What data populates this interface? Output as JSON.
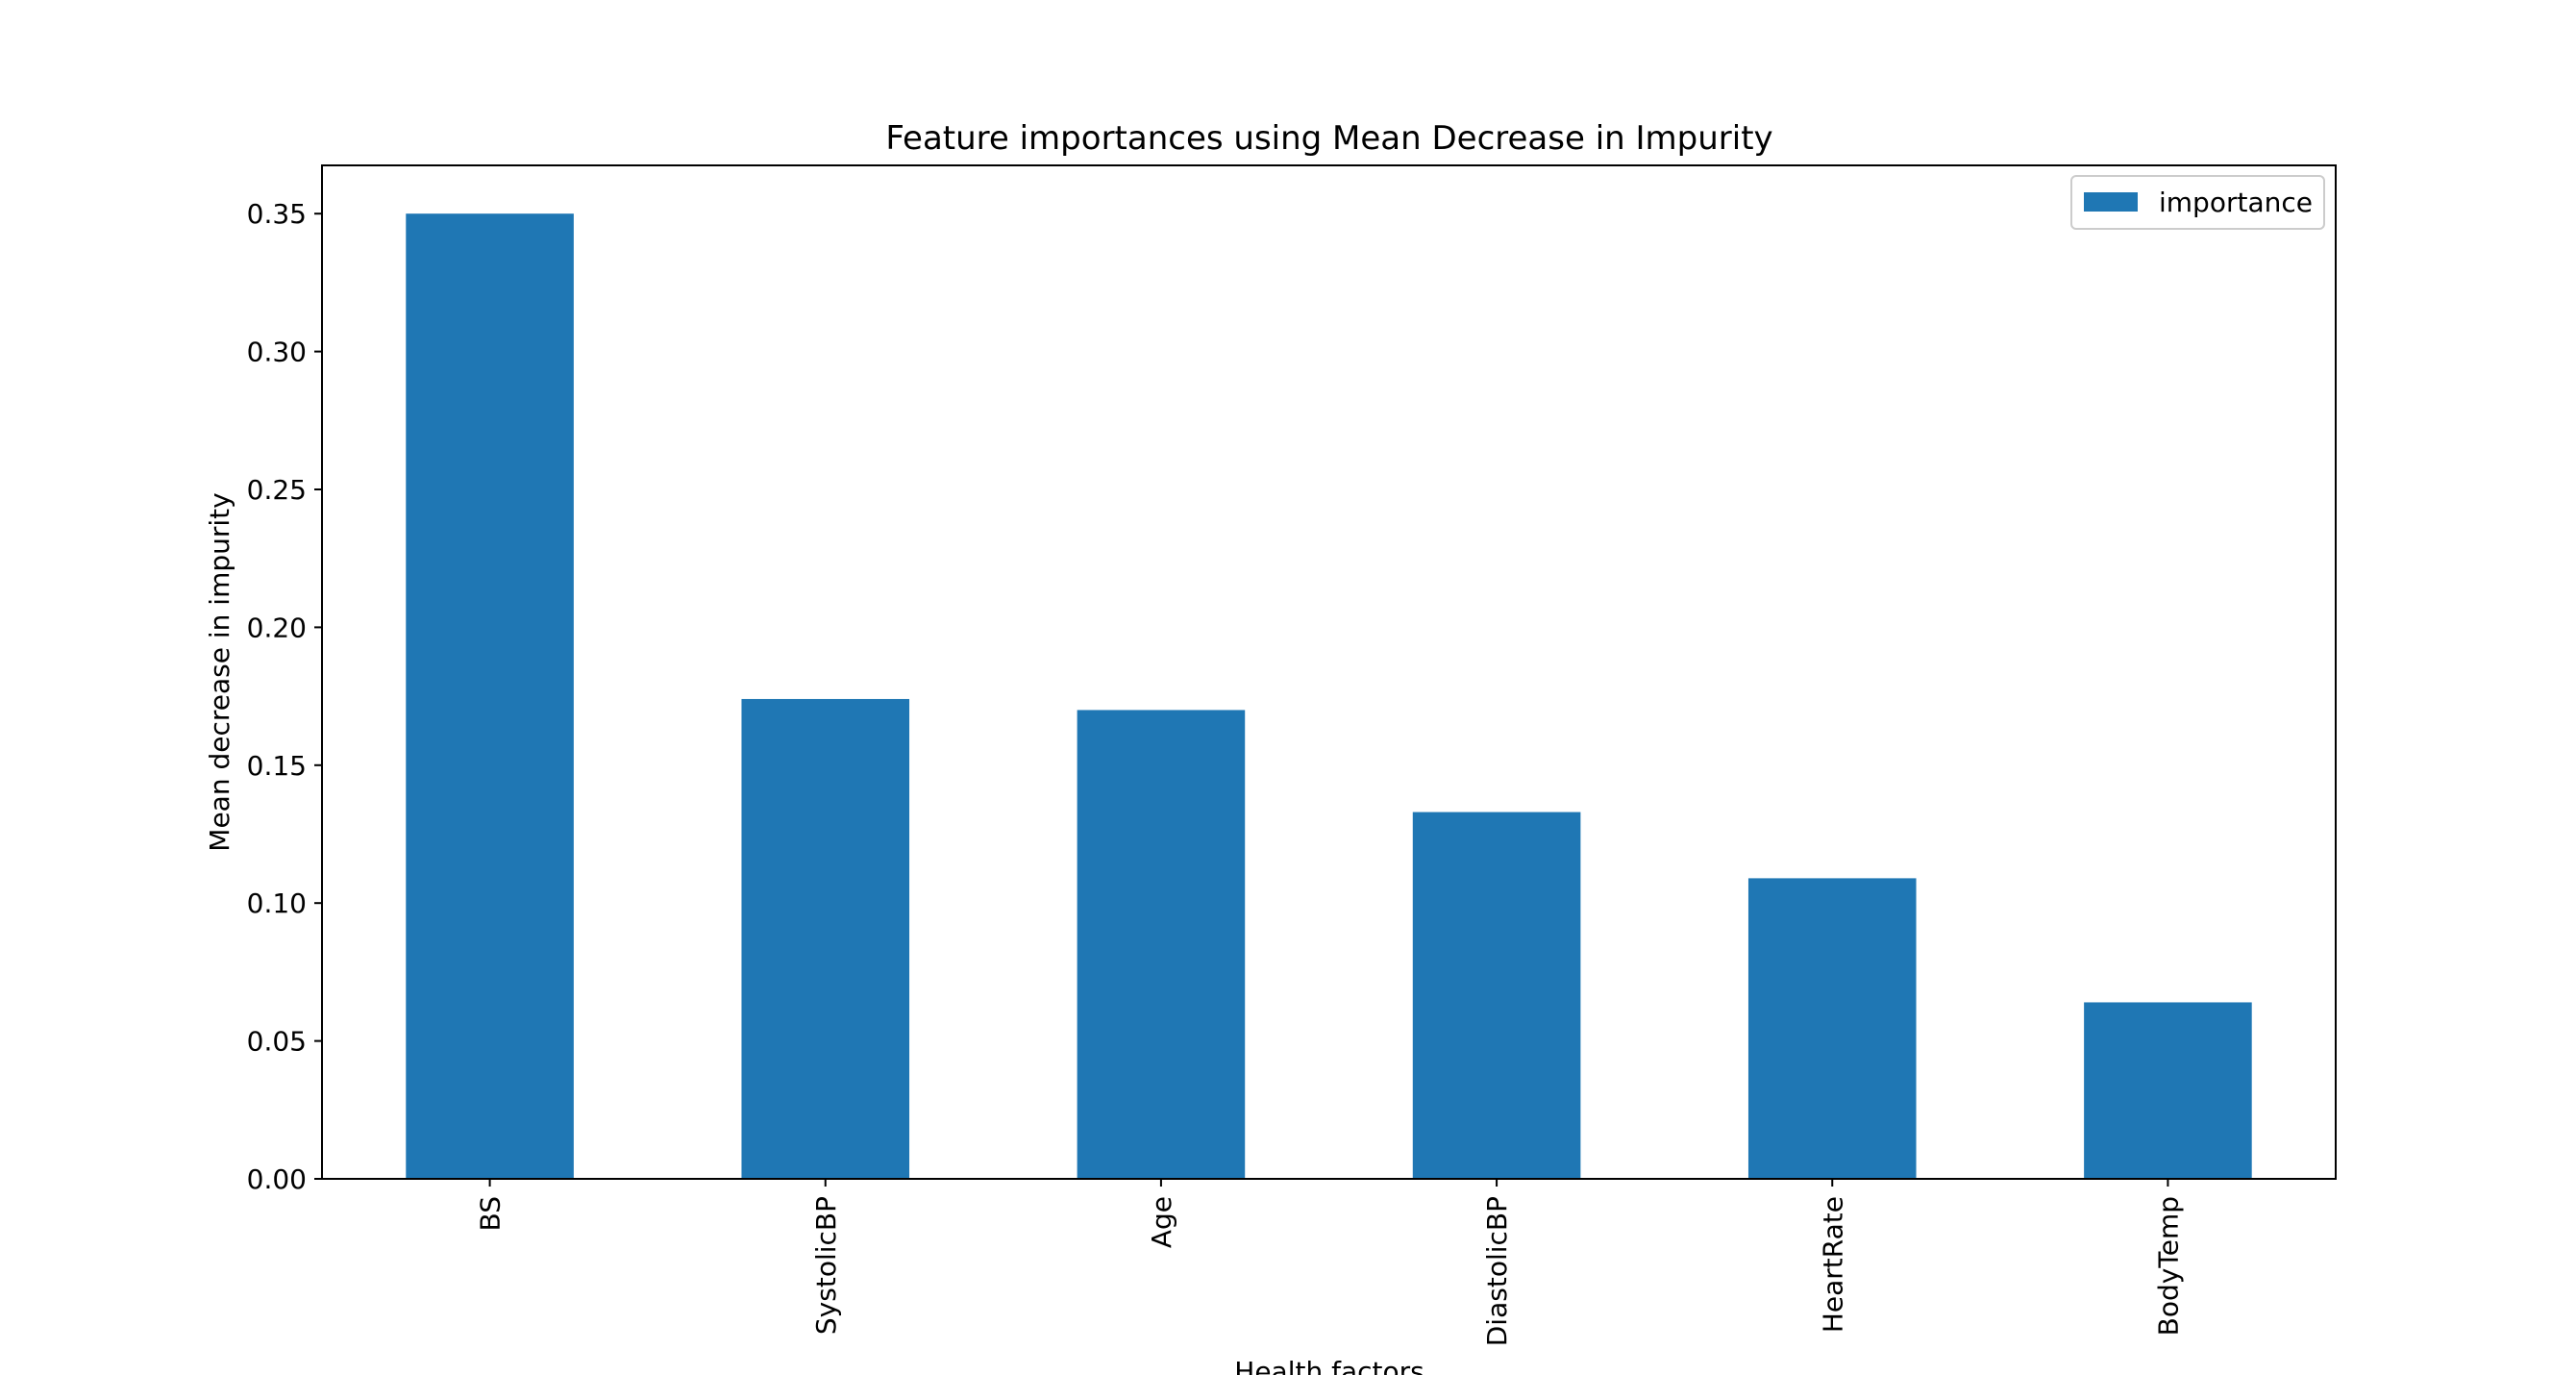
{
  "chart_data": {
    "type": "bar",
    "title": "Feature importances using Mean Decrease in Impurity",
    "xlabel": "Health factors",
    "ylabel": "Mean decrease in impurity",
    "categories": [
      "BS",
      "SystolicBP",
      "Age",
      "DiastolicBP",
      "HeartRate",
      "BodyTemp"
    ],
    "series": [
      {
        "name": "importance",
        "values": [
          0.35,
          0.174,
          0.17,
          0.133,
          0.109,
          0.064
        ]
      }
    ],
    "ylim": [
      0,
      0.3675
    ],
    "yticks": [
      0.0,
      0.05,
      0.1,
      0.15,
      0.2,
      0.25,
      0.3,
      0.35
    ],
    "ytick_labels": [
      "0.00",
      "0.05",
      "0.10",
      "0.15",
      "0.20",
      "0.25",
      "0.30",
      "0.35"
    ],
    "grid": false,
    "legend_position": "upper right",
    "colors": {
      "bar": "#1f77b4",
      "axis": "#000000",
      "legend_border": "#cccccc"
    }
  }
}
